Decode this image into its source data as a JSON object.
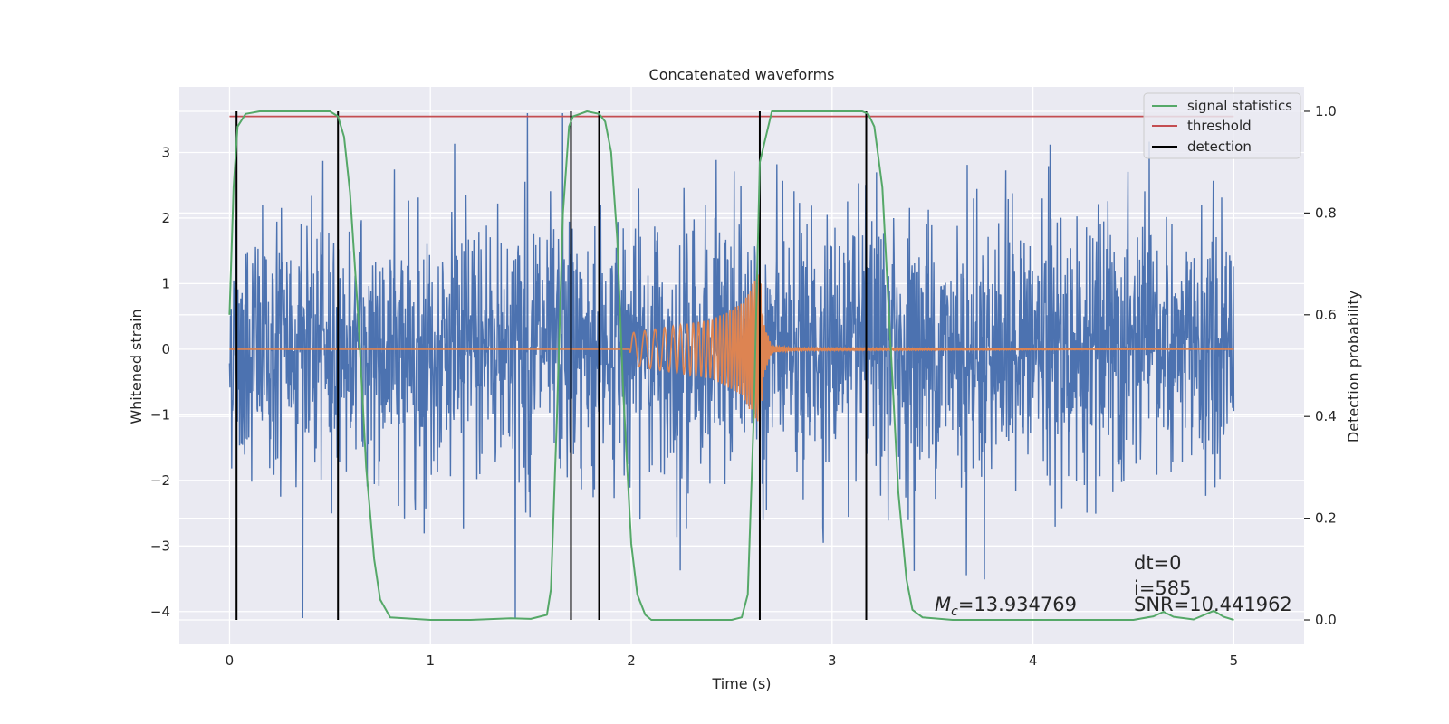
{
  "chart_data": {
    "type": "line",
    "title": "Concatenated waveforms",
    "xlabel": "Time (s)",
    "ylabel": "Whitened strain",
    "y2label": "Detection probability",
    "xlim": [
      -0.25,
      5.35
    ],
    "ylim": [
      -4.5,
      4.0
    ],
    "y2lim": [
      -0.048,
      1.048
    ],
    "x_ticks": [
      0,
      1,
      2,
      3,
      4,
      5
    ],
    "y_ticks": [
      -4,
      -3,
      -2,
      -1,
      0,
      1,
      2,
      3
    ],
    "y2_ticks": [
      0.0,
      0.2,
      0.4,
      0.6,
      0.8,
      1.0
    ],
    "y2_tick_labels": [
      "0.0",
      "0.2",
      "0.4",
      "0.6",
      "0.8",
      "1.0"
    ],
    "grid": true,
    "legend_position": "top-right",
    "colors": {
      "background": "#eaeaf2",
      "grid": "#ffffff",
      "strain": "#4c72b0",
      "template": "#dd8452",
      "signal_statistics": "#55a868",
      "threshold": "#c44e52",
      "detection": "#000000"
    },
    "series": [
      {
        "name": "",
        "kind": "whitened-noise-strain",
        "axis": "left",
        "x_range": [
          0,
          5
        ],
        "approx_envelope": [
          -4.1,
          3.6
        ]
      },
      {
        "name": "",
        "kind": "injected-template-chirp",
        "axis": "left",
        "x": [
          0,
          1.99,
          2.0,
          2.2,
          2.4,
          2.55,
          2.64,
          2.66,
          2.7,
          2.8,
          5.0
        ],
        "amplitude": [
          0,
          0,
          0.25,
          0.35,
          0.45,
          0.7,
          1.2,
          0.4,
          0.05,
          0.02,
          0
        ]
      },
      {
        "name": "signal statistics",
        "axis": "right",
        "x": [
          0.0,
          0.02,
          0.04,
          0.08,
          0.15,
          0.3,
          0.45,
          0.5,
          0.54,
          0.57,
          0.6,
          0.64,
          0.68,
          0.72,
          0.75,
          0.8,
          1.0,
          1.2,
          1.4,
          1.5,
          1.58,
          1.6,
          1.63,
          1.66,
          1.69,
          1.71,
          1.78,
          1.84,
          1.87,
          1.9,
          1.93,
          1.96,
          2.0,
          2.03,
          2.07,
          2.1,
          2.3,
          2.5,
          2.55,
          2.58,
          2.61,
          2.64,
          2.7,
          3.0,
          3.15,
          3.18,
          3.21,
          3.25,
          3.29,
          3.33,
          3.37,
          3.4,
          3.45,
          3.6,
          4.0,
          4.5,
          4.6,
          4.65,
          4.7,
          4.8,
          4.9,
          4.95,
          5.0
        ],
        "y": [
          0.6,
          0.85,
          0.97,
          0.995,
          1.0,
          1.0,
          1.0,
          1.0,
          0.99,
          0.95,
          0.84,
          0.6,
          0.3,
          0.12,
          0.04,
          0.005,
          0.0,
          0.0,
          0.003,
          0.002,
          0.01,
          0.06,
          0.4,
          0.8,
          0.97,
          0.99,
          1.0,
          0.995,
          0.98,
          0.92,
          0.75,
          0.45,
          0.15,
          0.05,
          0.01,
          0.0,
          0.0,
          0.0,
          0.005,
          0.05,
          0.4,
          0.9,
          1.0,
          1.0,
          1.0,
          0.995,
          0.97,
          0.85,
          0.55,
          0.25,
          0.08,
          0.02,
          0.005,
          0.0,
          0.0,
          0.0,
          0.007,
          0.016,
          0.006,
          0.001,
          0.018,
          0.006,
          0.0
        ]
      },
      {
        "name": "threshold",
        "axis": "right",
        "x": [
          0,
          5
        ],
        "y": [
          0.99,
          0.99
        ]
      },
      {
        "name": "detection",
        "axis": "right",
        "type": "vertical_lines",
        "x": [
          0.035,
          0.54,
          1.7,
          1.84,
          2.64,
          3.17
        ]
      }
    ],
    "annotations": {
      "dt": "dt=0",
      "i": "i=585",
      "snr": "SNR=10.441962",
      "mc_label": "M",
      "mc_sub": "c",
      "mc_value": "=13.934769"
    },
    "legend": [
      {
        "label": "signal statistics",
        "color": "#55a868"
      },
      {
        "label": "threshold",
        "color": "#c44e52"
      },
      {
        "label": "detection",
        "color": "#000000"
      }
    ]
  }
}
